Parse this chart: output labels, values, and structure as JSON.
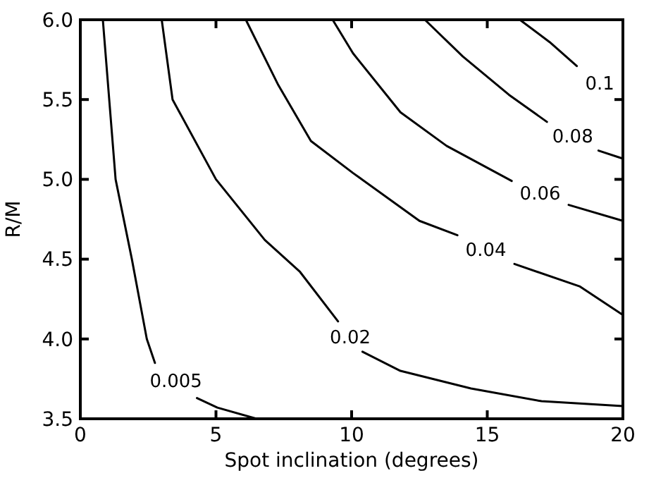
{
  "chart_data": {
    "type": "line",
    "xlabel": "Spot inclination (degrees)",
    "ylabel": "R/M",
    "xlim": [
      0,
      20
    ],
    "ylim": [
      3.5,
      6.0
    ],
    "xticks": [
      0,
      5,
      10,
      15,
      20
    ],
    "yticks": [
      {
        "value": 3.5,
        "label": "3.5"
      },
      {
        "value": 4,
        "label": "4.0"
      },
      {
        "value": 4.5,
        "label": "4.5"
      },
      {
        "value": 5,
        "label": "5.0"
      },
      {
        "value": 5.5,
        "label": "5.5"
      },
      {
        "value": 6,
        "label": "6.0"
      }
    ],
    "grid": false,
    "marker": "none",
    "line_style": "solid",
    "series": [
      {
        "name": "0.005",
        "color": "#000000",
        "x": [
          0.83,
          1.3,
          1.9,
          2.45,
          2.75,
          null,
          4.3,
          5.05,
          6.5
        ],
        "values": [
          6.0,
          5.0,
          4.5,
          4.0,
          3.85,
          null,
          3.63,
          3.57,
          3.5
        ]
      },
      {
        "name": "0.02",
        "color": "#000000",
        "x": [
          3.0,
          3.4,
          5.0,
          6.8,
          8.1,
          9.5,
          null,
          10.4,
          11.8,
          14.4,
          17.0,
          20.0
        ],
        "values": [
          6.0,
          5.5,
          5.0,
          4.62,
          4.42,
          4.11,
          null,
          3.92,
          3.8,
          3.69,
          3.61,
          3.58
        ]
      },
      {
        "name": "0.04",
        "color": "#000000",
        "x": [
          6.1,
          7.3,
          8.5,
          10.05,
          12.5,
          13.9,
          null,
          16.0,
          18.4,
          20.0
        ],
        "values": [
          6.0,
          5.59,
          5.24,
          5.04,
          4.74,
          4.65,
          null,
          4.47,
          4.33,
          4.15
        ]
      },
      {
        "name": "0.06",
        "color": "#000000",
        "x": [
          9.3,
          10.05,
          11.8,
          13.5,
          15.9,
          null,
          18.0,
          20.0
        ],
        "values": [
          6.0,
          5.79,
          5.42,
          5.21,
          4.99,
          null,
          4.84,
          4.74
        ]
      },
      {
        "name": "0.08",
        "color": "#000000",
        "x": [
          12.7,
          14.1,
          15.8,
          17.2,
          null,
          19.1,
          20.0
        ],
        "values": [
          6.0,
          5.77,
          5.53,
          5.36,
          null,
          5.18,
          5.13
        ]
      },
      {
        "name": "0.1",
        "color": "#000000",
        "x": [
          16.2,
          17.3,
          18.3
        ],
        "values": [
          6.0,
          5.86,
          5.71
        ]
      }
    ]
  }
}
